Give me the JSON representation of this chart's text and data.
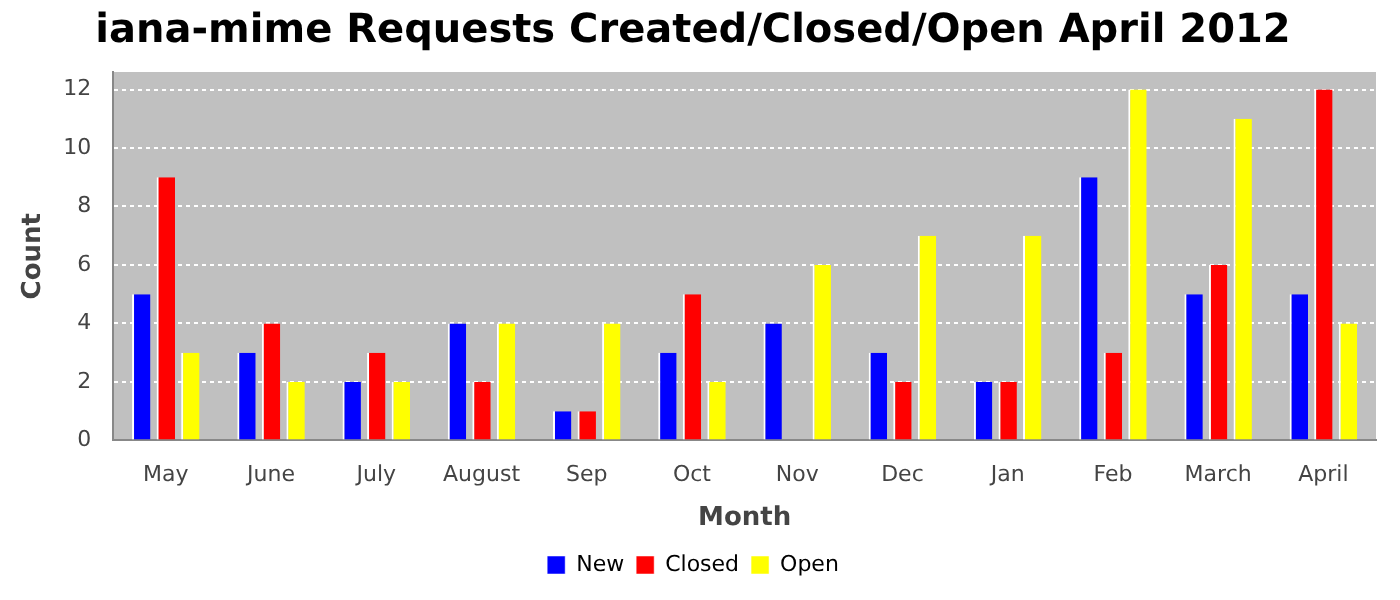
{
  "chart_data": {
    "type": "bar",
    "title": "iana-mime Requests Created/Closed/Open April 2012",
    "xlabel": "Month",
    "ylabel": "Count",
    "categories": [
      "May",
      "June",
      "July",
      "August",
      "Sep",
      "Oct",
      "Nov",
      "Dec",
      "Jan",
      "Feb",
      "March",
      "April"
    ],
    "series": [
      {
        "name": "New",
        "color": "#0000ff",
        "values": [
          5,
          3,
          2,
          4,
          1,
          3,
          4,
          3,
          2,
          9,
          5,
          5
        ]
      },
      {
        "name": "Closed",
        "color": "#ff0000",
        "values": [
          9,
          4,
          3,
          2,
          1,
          5,
          0,
          2,
          2,
          3,
          6,
          12
        ]
      },
      {
        "name": "Open",
        "color": "#ffff00",
        "values": [
          3,
          2,
          2,
          4,
          4,
          2,
          6,
          7,
          7,
          12,
          11,
          4
        ]
      }
    ],
    "ylim": [
      0,
      12.6
    ],
    "yticks": [
      0,
      2,
      4,
      6,
      8,
      10,
      12
    ],
    "grid": "y",
    "legend": "bottom"
  }
}
